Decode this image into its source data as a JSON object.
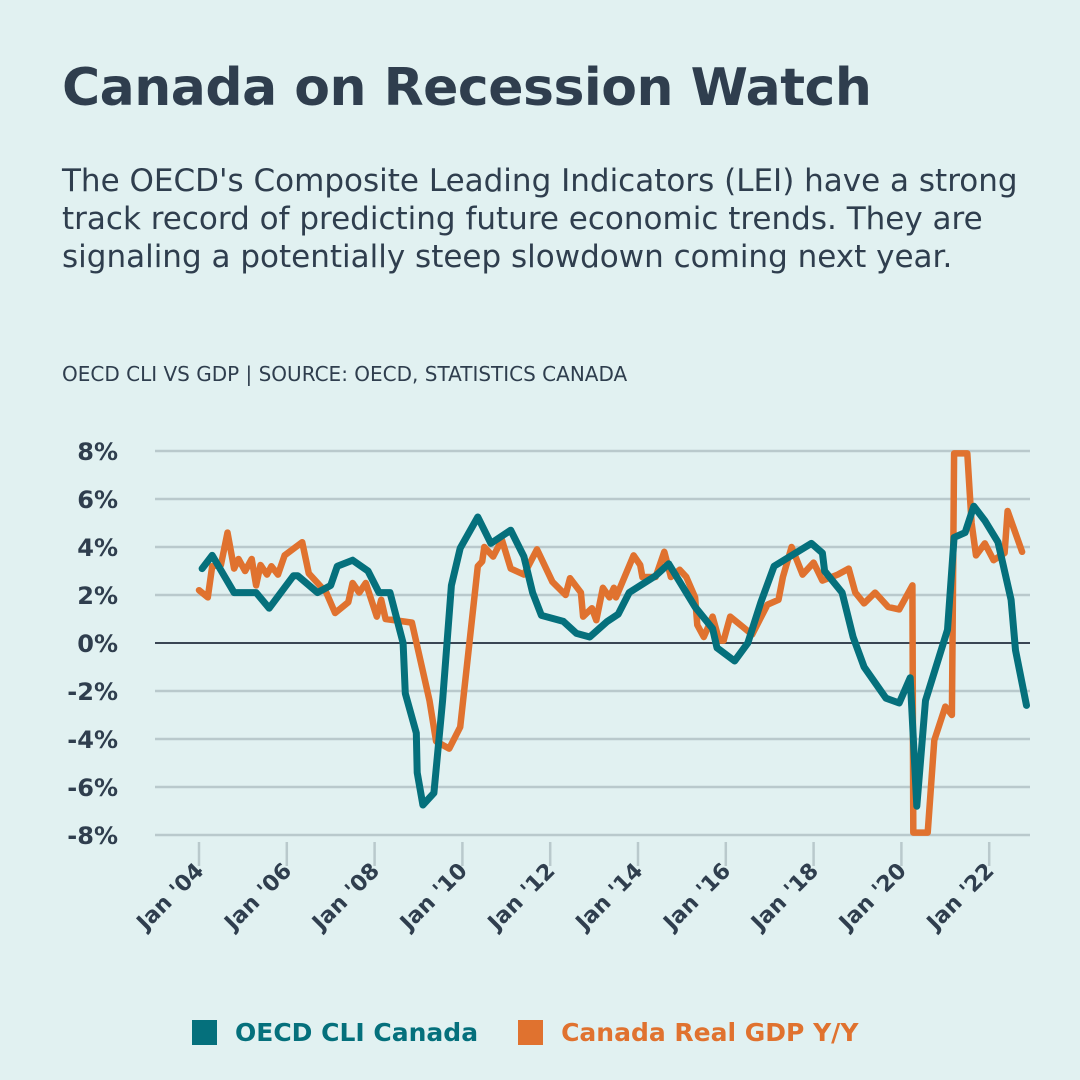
{
  "title": "Canada on Recession Watch",
  "subtitle": "The OECD's Composite Leading Indicators (LEI) have a strong track record of predicting future economic trends. They are signaling a potentially steep slowdown coming next year.",
  "source": "OECD CLI VS GDP | SOURCE: OECD, STATISTICS CANADA",
  "colors": {
    "background": "#e1f1f1",
    "text": "#2f3e4e",
    "cli": "#05707c",
    "gdp": "#e0722f",
    "grid": "#b9c9cc"
  },
  "chart_data": {
    "type": "line",
    "title": "",
    "xlabel": "",
    "ylabel": "",
    "ylim": [
      -8,
      8
    ],
    "xlim": [
      2003.2,
      2023.3
    ],
    "grid": true,
    "legend_position": "bottom",
    "y_ticks": [
      {
        "value": 8,
        "label": "8%"
      },
      {
        "value": 6,
        "label": "6%"
      },
      {
        "value": 4,
        "label": "4%"
      },
      {
        "value": 2,
        "label": "2%"
      },
      {
        "value": 0,
        "label": "0%"
      },
      {
        "value": -2,
        "label": "-2%"
      },
      {
        "value": -4,
        "label": "-4%"
      },
      {
        "value": -6,
        "label": "-6%"
      },
      {
        "value": -8,
        "label": "-8%"
      }
    ],
    "x_ticks": [
      {
        "value": 2004,
        "label": "Jan '04"
      },
      {
        "value": 2006,
        "label": "Jan '06"
      },
      {
        "value": 2008,
        "label": "Jan '08"
      },
      {
        "value": 2010,
        "label": "Jan '10"
      },
      {
        "value": 2012,
        "label": "Jan '12"
      },
      {
        "value": 2014,
        "label": "Jan '14"
      },
      {
        "value": 2016,
        "label": "Jan '16"
      },
      {
        "value": 2018,
        "label": "Jan '18"
      },
      {
        "value": 2020,
        "label": "Jan '20"
      },
      {
        "value": 2022,
        "label": "Jan '22"
      }
    ],
    "series": [
      {
        "name": "Canada Real GDP Y/Y",
        "color": "#e0722f",
        "points": [
          [
            2004.0,
            2.2
          ],
          [
            2004.2,
            1.9
          ],
          [
            2004.3,
            3.2
          ],
          [
            2004.5,
            3.25
          ],
          [
            2004.65,
            4.6
          ],
          [
            2004.8,
            3.1
          ],
          [
            2004.9,
            3.5
          ],
          [
            2005.05,
            3.0
          ],
          [
            2005.2,
            3.5
          ],
          [
            2005.3,
            2.4
          ],
          [
            2005.4,
            3.25
          ],
          [
            2005.55,
            2.85
          ],
          [
            2005.65,
            3.2
          ],
          [
            2005.8,
            2.85
          ],
          [
            2005.95,
            3.65
          ],
          [
            2006.35,
            4.2
          ],
          [
            2006.5,
            2.9
          ],
          [
            2006.9,
            2.1
          ],
          [
            2007.1,
            1.25
          ],
          [
            2007.4,
            1.7
          ],
          [
            2007.5,
            2.5
          ],
          [
            2007.65,
            2.1
          ],
          [
            2007.8,
            2.5
          ],
          [
            2008.05,
            1.1
          ],
          [
            2008.15,
            1.8
          ],
          [
            2008.25,
            1.0
          ],
          [
            2008.65,
            0.9
          ],
          [
            2008.85,
            0.85
          ],
          [
            2009.25,
            -2.4
          ],
          [
            2009.4,
            -4.1
          ],
          [
            2009.7,
            -4.4
          ],
          [
            2009.95,
            -3.5
          ],
          [
            2010.35,
            3.2
          ],
          [
            2010.45,
            3.4
          ],
          [
            2010.5,
            4.0
          ],
          [
            2010.7,
            3.6
          ],
          [
            2010.9,
            4.3
          ],
          [
            2011.1,
            3.1
          ],
          [
            2011.4,
            2.85
          ],
          [
            2011.7,
            3.9
          ],
          [
            2012.05,
            2.55
          ],
          [
            2012.35,
            2.0
          ],
          [
            2012.45,
            2.7
          ],
          [
            2012.7,
            2.1
          ],
          [
            2012.75,
            1.1
          ],
          [
            2012.95,
            1.45
          ],
          [
            2013.05,
            0.95
          ],
          [
            2013.2,
            2.3
          ],
          [
            2013.35,
            1.9
          ],
          [
            2013.45,
            2.3
          ],
          [
            2013.5,
            1.9
          ],
          [
            2013.9,
            3.65
          ],
          [
            2014.05,
            3.25
          ],
          [
            2014.1,
            2.75
          ],
          [
            2014.4,
            2.75
          ],
          [
            2014.6,
            3.8
          ],
          [
            2014.75,
            2.75
          ],
          [
            2014.95,
            3.05
          ],
          [
            2015.1,
            2.75
          ],
          [
            2015.3,
            1.9
          ],
          [
            2015.35,
            0.75
          ],
          [
            2015.5,
            0.25
          ],
          [
            2015.7,
            1.1
          ],
          [
            2015.85,
            0.1
          ],
          [
            2015.95,
            0.1
          ],
          [
            2016.1,
            1.1
          ],
          [
            2016.4,
            0.65
          ],
          [
            2016.6,
            0.35
          ],
          [
            2016.95,
            1.6
          ],
          [
            2017.2,
            1.8
          ],
          [
            2017.3,
            2.75
          ],
          [
            2017.5,
            4.0
          ],
          [
            2017.75,
            2.85
          ],
          [
            2018.0,
            3.35
          ],
          [
            2018.2,
            2.6
          ],
          [
            2018.55,
            2.85
          ],
          [
            2018.8,
            3.1
          ],
          [
            2018.95,
            2.1
          ],
          [
            2019.15,
            1.65
          ],
          [
            2019.4,
            2.1
          ],
          [
            2019.7,
            1.5
          ],
          [
            2019.95,
            1.4
          ],
          [
            2020.25,
            2.4
          ],
          [
            2020.27,
            -7.9
          ],
          [
            2020.6,
            -7.9
          ],
          [
            2020.75,
            -4.05
          ],
          [
            2021.0,
            -2.65
          ],
          [
            2021.15,
            -3.0
          ],
          [
            2021.2,
            7.9
          ],
          [
            2021.5,
            7.9
          ],
          [
            2021.6,
            5.0
          ],
          [
            2021.7,
            3.65
          ],
          [
            2021.9,
            4.15
          ],
          [
            2022.1,
            3.45
          ],
          [
            2022.35,
            3.75
          ],
          [
            2022.42,
            5.5
          ],
          [
            2022.75,
            3.8
          ]
        ]
      },
      {
        "name": "OECD CLI Canada",
        "color": "#05707c",
        "points": [
          [
            2004.07,
            3.1
          ],
          [
            2004.3,
            3.65
          ],
          [
            2004.8,
            2.1
          ],
          [
            2005.3,
            2.1
          ],
          [
            2005.6,
            1.45
          ],
          [
            2006.15,
            2.8
          ],
          [
            2006.25,
            2.8
          ],
          [
            2006.7,
            2.1
          ],
          [
            2007.0,
            2.4
          ],
          [
            2007.15,
            3.2
          ],
          [
            2007.5,
            3.45
          ],
          [
            2007.85,
            3.0
          ],
          [
            2008.1,
            2.1
          ],
          [
            2008.35,
            2.1
          ],
          [
            2008.65,
            0.0
          ],
          [
            2008.7,
            -2.1
          ],
          [
            2008.95,
            -3.75
          ],
          [
            2008.97,
            -5.4
          ],
          [
            2009.1,
            -6.75
          ],
          [
            2009.35,
            -6.25
          ],
          [
            2009.55,
            -2.4
          ],
          [
            2009.75,
            2.4
          ],
          [
            2009.95,
            3.95
          ],
          [
            2010.35,
            5.25
          ],
          [
            2010.65,
            4.15
          ],
          [
            2011.1,
            4.7
          ],
          [
            2011.4,
            3.6
          ],
          [
            2011.6,
            2.1
          ],
          [
            2011.8,
            1.15
          ],
          [
            2012.3,
            0.9
          ],
          [
            2012.6,
            0.4
          ],
          [
            2012.9,
            0.25
          ],
          [
            2013.3,
            0.9
          ],
          [
            2013.55,
            1.2
          ],
          [
            2013.8,
            2.1
          ],
          [
            2014.4,
            2.8
          ],
          [
            2014.7,
            3.3
          ],
          [
            2015.3,
            1.5
          ],
          [
            2015.7,
            0.6
          ],
          [
            2015.8,
            -0.2
          ],
          [
            2016.2,
            -0.75
          ],
          [
            2016.5,
            0.0
          ],
          [
            2016.8,
            1.7
          ],
          [
            2017.1,
            3.2
          ],
          [
            2017.95,
            4.15
          ],
          [
            2018.2,
            3.75
          ],
          [
            2018.25,
            3.0
          ],
          [
            2018.65,
            2.1
          ],
          [
            2018.9,
            0.25
          ],
          [
            2019.15,
            -1.0
          ],
          [
            2019.65,
            -2.3
          ],
          [
            2019.95,
            -2.5
          ],
          [
            2020.2,
            -1.45
          ],
          [
            2020.35,
            -6.8
          ],
          [
            2020.55,
            -2.4
          ],
          [
            2021.05,
            0.55
          ],
          [
            2021.2,
            4.4
          ],
          [
            2021.45,
            4.6
          ],
          [
            2021.65,
            5.7
          ],
          [
            2021.9,
            5.1
          ],
          [
            2022.2,
            4.2
          ],
          [
            2022.5,
            1.8
          ],
          [
            2022.6,
            -0.3
          ],
          [
            2022.85,
            -2.6
          ]
        ]
      }
    ]
  },
  "legend": [
    {
      "label": "OECD CLI Canada",
      "color": "#05707c"
    },
    {
      "label": "Canada Real GDP Y/Y",
      "color": "#e0722f"
    }
  ]
}
